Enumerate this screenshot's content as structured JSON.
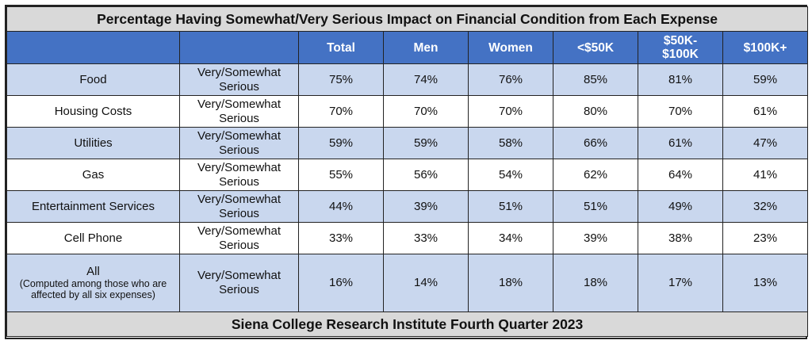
{
  "chart_data": {
    "type": "table",
    "title": "Percentage Having Somewhat/Very Serious Impact on Financial Condition from Each Expense",
    "footer": "Siena College Research Institute Fourth Quarter 2023",
    "columns": [
      "",
      "",
      "Total",
      "Men",
      "Women",
      "<$50K",
      "$50K-\n$100K",
      "$100K+"
    ],
    "rows": [
      {
        "item": "Food",
        "note": "",
        "response": "Very/Somewhat Serious",
        "values": [
          "75%",
          "74%",
          "76%",
          "85%",
          "81%",
          "59%"
        ]
      },
      {
        "item": "Housing Costs",
        "note": "",
        "response": "Very/Somewhat Serious",
        "values": [
          "70%",
          "70%",
          "70%",
          "80%",
          "70%",
          "61%"
        ]
      },
      {
        "item": "Utilities",
        "note": "",
        "response": "Very/Somewhat Serious",
        "values": [
          "59%",
          "59%",
          "58%",
          "66%",
          "61%",
          "47%"
        ]
      },
      {
        "item": "Gas",
        "note": "",
        "response": "Very/Somewhat Serious",
        "values": [
          "55%",
          "56%",
          "54%",
          "62%",
          "64%",
          "41%"
        ]
      },
      {
        "item": "Entertainment Services",
        "note": "",
        "response": "Very/Somewhat Serious",
        "values": [
          "44%",
          "39%",
          "51%",
          "51%",
          "49%",
          "32%"
        ]
      },
      {
        "item": "Cell Phone",
        "note": "",
        "response": "Very/Somewhat Serious",
        "values": [
          "33%",
          "33%",
          "34%",
          "39%",
          "38%",
          "23%"
        ]
      },
      {
        "item": "All",
        "note": "(Computed among those who are affected by all six expenses)",
        "response": "Very/Somewhat Serious",
        "values": [
          "16%",
          "14%",
          "18%",
          "18%",
          "17%",
          "13%"
        ]
      }
    ]
  },
  "colors": {
    "header_bg": "#4472c4",
    "header_text": "#ffffff",
    "row_shade": "#c9d7ee",
    "title_bg": "#d9d9d9",
    "border": "#222222"
  }
}
